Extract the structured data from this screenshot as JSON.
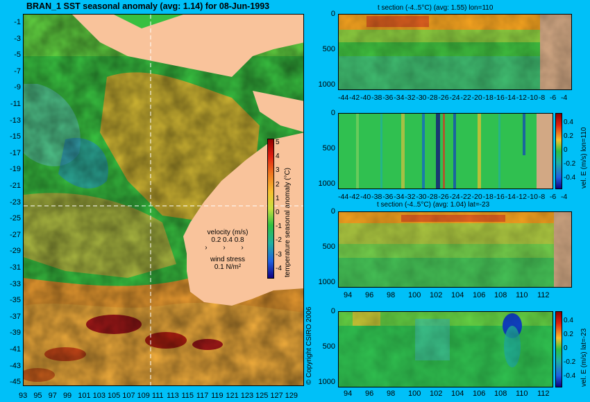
{
  "main_title": "BRAN_1  SST seasonal anomaly  (avg: 1.14)  for 08-Jun-1993",
  "map": {
    "lat_ticks": [
      "-1",
      "-3",
      "-5",
      "-7",
      "-9",
      "-11",
      "-13",
      "-15",
      "-17",
      "-19",
      "-21",
      "-23",
      "-25",
      "-27",
      "-29",
      "-31",
      "-33",
      "-35",
      "-37",
      "-39",
      "-41",
      "-43",
      "-45"
    ],
    "lon_ticks": [
      "93",
      "95",
      "97",
      "99",
      "101",
      "103",
      "105",
      "107",
      "109",
      "111",
      "113",
      "115",
      "117",
      "119",
      "121",
      "123",
      "125",
      "127",
      "129"
    ],
    "colorbar_ticks": [
      "5",
      "4",
      "3",
      "2",
      "1",
      "0",
      "-1",
      "-2",
      "-3",
      "-4"
    ],
    "colorbar_label": "temperature seasonal anomaly (°C)",
    "velocity_label": "velocity (m/s)",
    "velocity_values": "0.2 0.4 0.8",
    "wind_label": "wind stress",
    "wind_value": "0.1 N/m²"
  },
  "panels": [
    {
      "title": "t section (-4..5°C) (avg: 1.55) lon=110",
      "y_ticks": [
        "0",
        "500",
        "1000"
      ],
      "x_ticks": [
        "-44",
        "-42",
        "-40",
        "-38",
        "-36",
        "-34",
        "-32",
        "-30",
        "-28",
        "-26",
        "-24",
        "-22",
        "-20",
        "-18",
        "-16",
        "-14",
        "-12",
        "-10",
        "-8",
        "-6",
        "-4"
      ],
      "side_label": ""
    },
    {
      "title": "",
      "y_ticks": [
        "0",
        "500",
        "1000"
      ],
      "x_ticks": [
        "-44",
        "-42",
        "-40",
        "-38",
        "-36",
        "-34",
        "-32",
        "-30",
        "-28",
        "-26",
        "-24",
        "-22",
        "-20",
        "-18",
        "-16",
        "-14",
        "-12",
        "-10",
        "-8",
        "-6",
        "-4"
      ],
      "colorbar_ticks": [
        "0.4",
        "0.2",
        "0",
        "-0.2",
        "-0.4"
      ],
      "side_label": "vel. E (m/s) lon=110"
    },
    {
      "title": "t section (-4..5°C) (avg: 1.04) lat=-23",
      "y_ticks": [
        "0",
        "500",
        "1000"
      ],
      "x_ticks": [
        "94",
        "96",
        "98",
        "100",
        "102",
        "104",
        "106",
        "108",
        "110",
        "112"
      ],
      "side_label": ""
    },
    {
      "title": "",
      "y_ticks": [
        "0",
        "500",
        "1000"
      ],
      "x_ticks": [
        "94",
        "96",
        "98",
        "100",
        "102",
        "104",
        "106",
        "108",
        "110",
        "112"
      ],
      "colorbar_ticks": [
        "0.4",
        "0.2",
        "0",
        "-0.2",
        "-0.4"
      ],
      "side_label": "vel. E (m/s) lat=-23"
    }
  ],
  "copyright": "© Copyright CSIRO 2006",
  "colors": {
    "background": "#00c0f8",
    "land": "#f9c39b",
    "anom_warm": "#f0a030",
    "anom_cool": "#30c060"
  }
}
